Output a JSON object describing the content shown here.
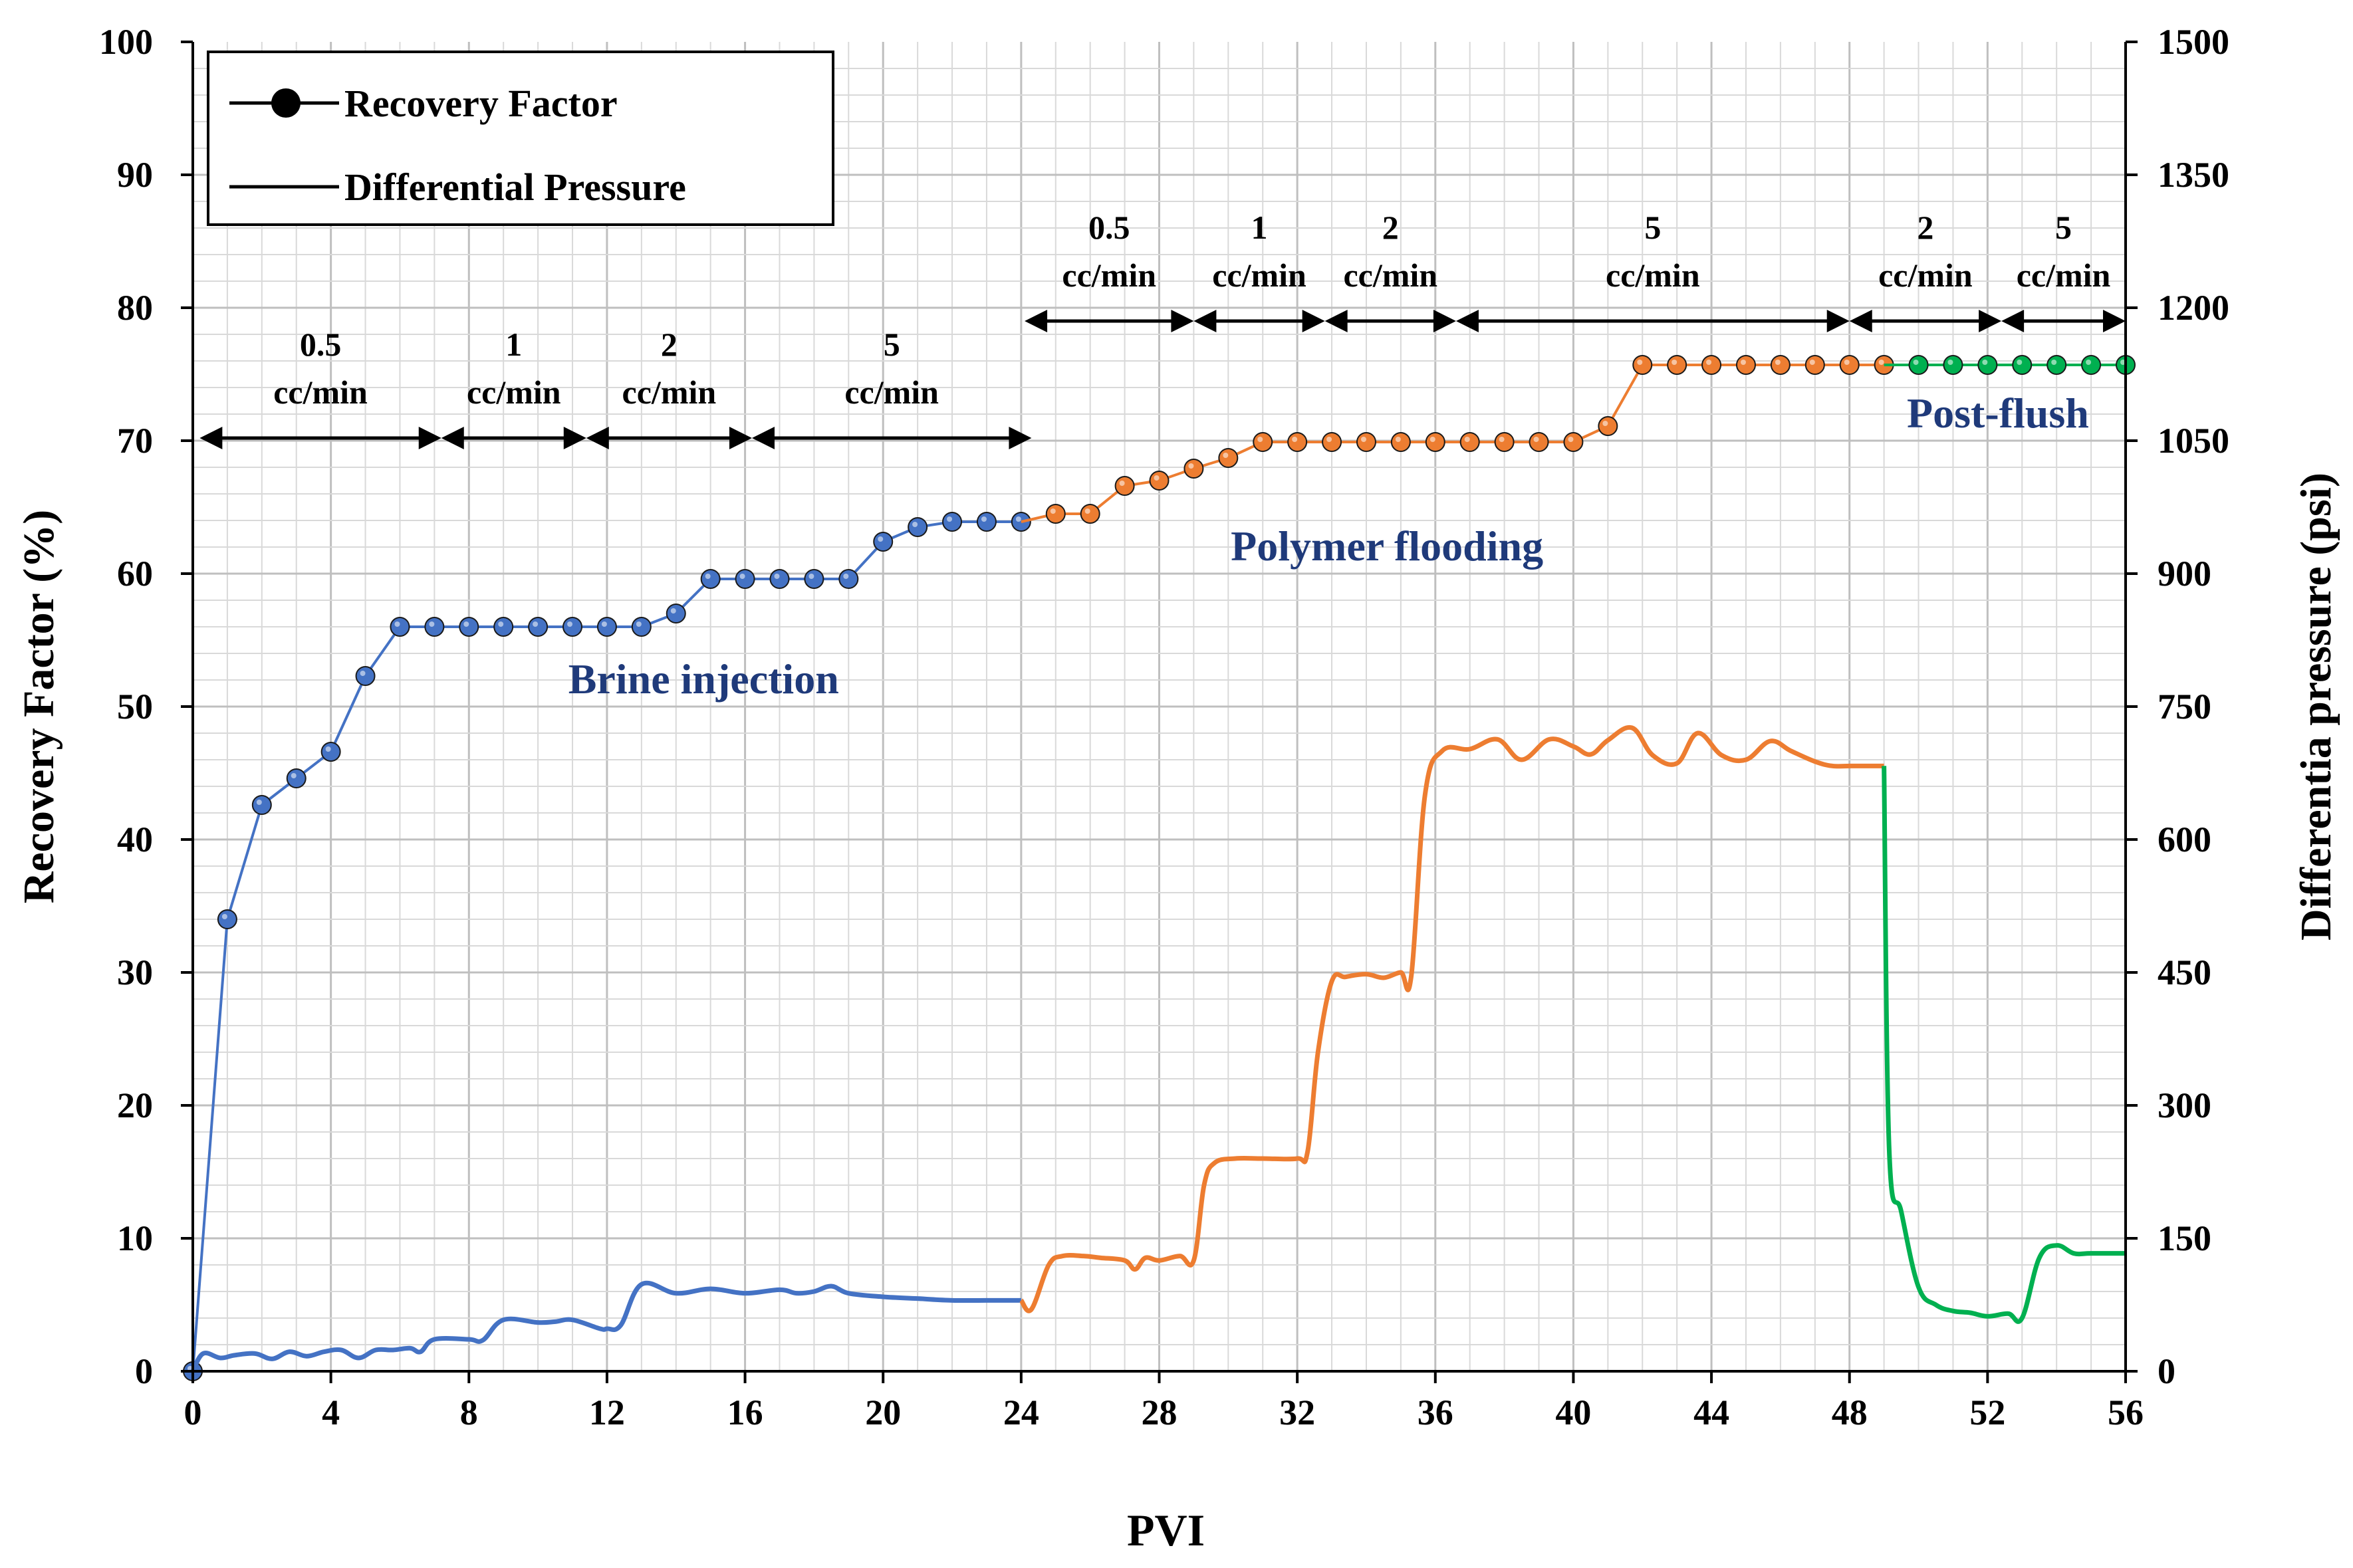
{
  "chart_data": {
    "type": "line",
    "xlabel": "PVI",
    "ylabel_left": "Recovery Factor (%)",
    "ylabel_right": "Differentia pressure (psi)",
    "x_range": [
      0,
      56
    ],
    "x_ticks": [
      0,
      4,
      8,
      12,
      16,
      20,
      24,
      28,
      32,
      36,
      40,
      44,
      48,
      52,
      56
    ],
    "y_left_range": [
      0,
      100
    ],
    "y_left_ticks": [
      0,
      10,
      20,
      30,
      40,
      50,
      60,
      70,
      80,
      90,
      100
    ],
    "y_right_range": [
      0,
      1500
    ],
    "y_right_ticks": [
      0,
      150,
      300,
      450,
      600,
      750,
      900,
      1050,
      1200,
      1350,
      1500
    ],
    "grid": true,
    "legend": {
      "position": "top-left",
      "entries": [
        {
          "label": "Recovery Factor",
          "style": "line-marker"
        },
        {
          "label": "Differential Pressure",
          "style": "line"
        }
      ]
    },
    "colors": {
      "brine": "#4472c4",
      "polymer": "#ed7d31",
      "postflush": "#00b050",
      "axis": "#000000"
    },
    "phase_labels": [
      {
        "text": "Brine injection",
        "x": 14.8,
        "y": 51,
        "color": "#1f3a7a"
      },
      {
        "text": "Polymer flooding",
        "x": 34.6,
        "y": 61,
        "color": "#1f3a7a"
      },
      {
        "text": "Post-flush",
        "x": 52.3,
        "y": 71,
        "color": "#1f3a7a"
      }
    ],
    "rate_annotations": [
      {
        "rate": "0.5",
        "unit": "cc/min",
        "x_start": 0.2,
        "x_end": 7.2,
        "y_arrow": 70.2
      },
      {
        "rate": "1",
        "unit": "cc/min",
        "x_start": 7.2,
        "x_end": 11.4,
        "y_arrow": 70.2
      },
      {
        "rate": "2",
        "unit": "cc/min",
        "x_start": 11.4,
        "x_end": 16.2,
        "y_arrow": 70.2
      },
      {
        "rate": "5",
        "unit": "cc/min",
        "x_start": 16.2,
        "x_end": 24.3,
        "y_arrow": 70.2
      },
      {
        "rate": "0.5",
        "unit": "cc/min",
        "x_start": 24.1,
        "x_end": 29.0,
        "y_arrow": 79.0
      },
      {
        "rate": "1",
        "unit": "cc/min",
        "x_start": 29.0,
        "x_end": 32.8,
        "y_arrow": 79.0
      },
      {
        "rate": "2",
        "unit": "cc/min",
        "x_start": 32.8,
        "x_end": 36.6,
        "y_arrow": 79.0
      },
      {
        "rate": "5",
        "unit": "cc/min",
        "x_start": 36.6,
        "x_end": 48.0,
        "y_arrow": 79.0
      },
      {
        "rate": "2",
        "unit": "cc/min",
        "x_start": 48.0,
        "x_end": 52.4,
        "y_arrow": 79.0
      },
      {
        "rate": "5",
        "unit": "cc/min",
        "x_start": 52.4,
        "x_end": 56.0,
        "y_arrow": 79.0
      }
    ],
    "series": [
      {
        "name": "Recovery Factor - Brine injection",
        "phase": "brine",
        "axis": "left",
        "markers": true,
        "x": [
          0,
          1,
          2,
          3,
          4,
          5,
          6,
          7,
          8,
          9,
          10,
          11,
          12,
          13,
          14,
          15,
          16,
          17,
          18,
          19,
          20,
          21,
          22,
          23,
          24
        ],
        "y": [
          0,
          34.0,
          42.6,
          44.6,
          46.6,
          52.3,
          56.0,
          56.0,
          56.0,
          56.0,
          56.0,
          56.0,
          56.0,
          56.0,
          57.0,
          59.6,
          59.6,
          59.6,
          59.6,
          59.6,
          62.4,
          63.5,
          63.9,
          63.9,
          63.9
        ]
      },
      {
        "name": "Recovery Factor - Polymer flooding",
        "phase": "polymer",
        "axis": "left",
        "markers": true,
        "x": [
          24,
          25,
          26,
          27,
          28,
          29,
          30,
          31,
          32,
          33,
          34,
          35,
          36,
          37,
          38,
          39,
          40,
          41,
          42,
          43,
          44,
          45,
          46,
          47,
          48,
          49
        ],
        "y": [
          63.9,
          64.5,
          64.5,
          66.6,
          67.0,
          67.9,
          68.7,
          69.9,
          69.9,
          69.9,
          69.9,
          69.9,
          69.9,
          69.9,
          69.9,
          69.9,
          69.9,
          71.1,
          75.7,
          75.7,
          75.7,
          75.7,
          75.7,
          75.7,
          75.7,
          75.7
        ]
      },
      {
        "name": "Recovery Factor - Post-flush",
        "phase": "postflush",
        "axis": "left",
        "markers": true,
        "x": [
          49,
          50,
          51,
          52,
          53,
          54,
          55,
          56
        ],
        "y": [
          75.7,
          75.7,
          75.7,
          75.7,
          75.7,
          75.7,
          75.7,
          75.7
        ]
      },
      {
        "name": "Differential Pressure - Brine injection",
        "phase": "brine",
        "axis": "right",
        "markers": false,
        "x": [
          0,
          0.3,
          0.8,
          1.2,
          1.8,
          2.3,
          2.8,
          3.3,
          3.8,
          4.3,
          4.8,
          5.3,
          5.8,
          6.3,
          6.6,
          7,
          8,
          8.4,
          9,
          10,
          10.5,
          11,
          11.8,
          12,
          12.4,
          13,
          14,
          15,
          16,
          17,
          17.5,
          18,
          18.5,
          19,
          20,
          21,
          22,
          23,
          24
        ],
        "y": [
          0,
          20,
          15,
          18,
          20,
          14,
          22,
          17,
          22,
          24,
          15,
          24,
          24,
          26,
          22,
          36,
          36,
          35,
          58,
          55,
          56,
          58,
          48,
          48,
          52,
          98,
          88,
          93,
          88,
          92,
          88,
          90,
          96,
          88,
          84,
          82,
          80,
          80,
          80
        ]
      },
      {
        "name": "Differential Pressure - Polymer flooding",
        "phase": "polymer",
        "axis": "right",
        "markers": false,
        "x": [
          24,
          24.3,
          24.8,
          25.2,
          25.8,
          26.3,
          27,
          27.3,
          27.6,
          28,
          28.6,
          29,
          29.3,
          29.6,
          30.2,
          31,
          32,
          32.3,
          32.6,
          33,
          33.4,
          34,
          34.5,
          35,
          35.3,
          35.7,
          36.2,
          37,
          37.8,
          38.5,
          39.3,
          40,
          40.5,
          41,
          41.7,
          42.3,
          43,
          43.6,
          44.3,
          45,
          45.7,
          46.3,
          47,
          47.5,
          48,
          48.5,
          49
        ],
        "y": [
          80,
          70,
          120,
          130,
          130,
          128,
          125,
          115,
          128,
          125,
          130,
          125,
          210,
          235,
          240,
          240,
          240,
          248,
          360,
          440,
          445,
          448,
          444,
          450,
          445,
          650,
          700,
          702,
          713,
          690,
          713,
          705,
          696,
          712,
          726,
          695,
          686,
          720,
          695,
          690,
          711,
          700,
          688,
          683,
          683,
          683,
          683
        ]
      },
      {
        "name": "Differential Pressure - Post-flush",
        "phase": "postflush",
        "axis": "right",
        "markers": false,
        "x": [
          49,
          49.15,
          49.5,
          50,
          50.5,
          51,
          51.5,
          52,
          52.6,
          53,
          53.5,
          54,
          54.5,
          55,
          56
        ],
        "y": [
          683,
          250,
          180,
          95,
          75,
          68,
          66,
          62,
          65,
          60,
          128,
          142,
          133,
          133,
          133
        ]
      }
    ]
  }
}
